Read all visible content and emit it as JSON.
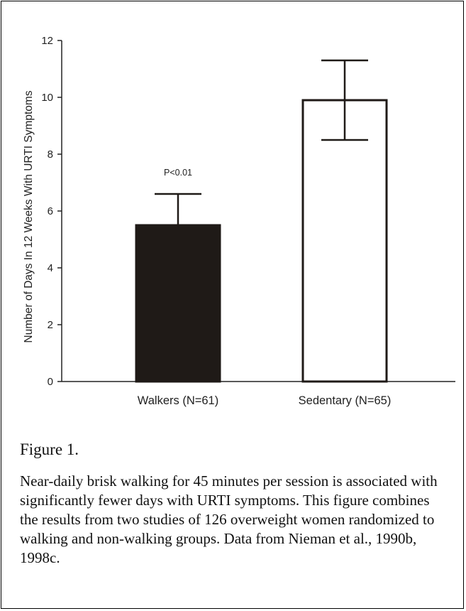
{
  "chart_data": {
    "type": "bar",
    "categories": [
      "Walkers (N=61)",
      "Sedentary (N=65)"
    ],
    "values": [
      5.5,
      9.9
    ],
    "errors_upper": [
      6.6,
      11.3
    ],
    "errors_lower": [
      null,
      8.5
    ],
    "bar_fill": [
      "#1f1a17",
      "#ffffff"
    ],
    "annotations": [
      {
        "category": 0,
        "text": "P<0.01"
      }
    ],
    "ylabel": "Number of Days In 12 Weeks With URTI Symptoms",
    "xlabel": "",
    "ylim": [
      0,
      12
    ],
    "yticks": [
      0,
      2,
      4,
      6,
      8,
      10,
      12
    ],
    "grid": false
  },
  "figure": {
    "label": "Figure 1.",
    "caption": "Near-daily brisk walking for 45 minutes per session is associated with significantly fewer days with URTI symptoms. This figure combines the results from two studies of 126 overweight women randomized to walking and non-walking groups. Data from Nieman et al., 1990b, 1998c."
  }
}
